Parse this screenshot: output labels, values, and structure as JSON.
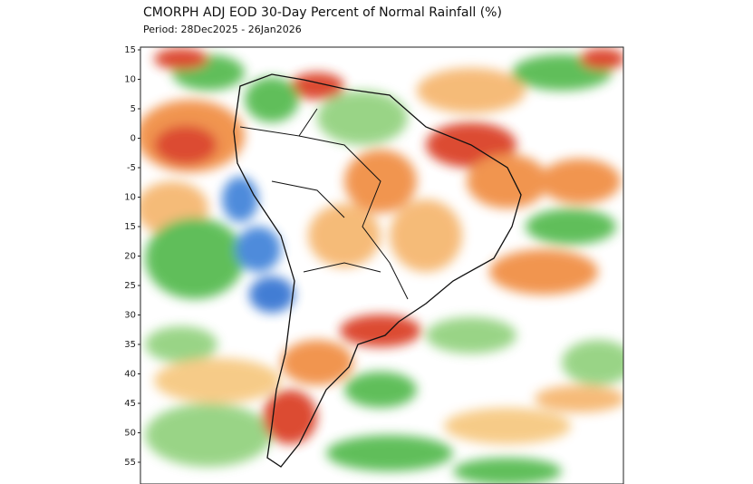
{
  "header": {
    "title": "CMORPH ADJ EOD 30-Day Percent of Normal Rainfall (%)",
    "period": "Period: 28Dec2025 - 26Jan2026"
  },
  "map": {
    "lat_labels": [
      "15",
      "10",
      "5",
      "0",
      "-5",
      "10",
      "15",
      "20",
      "25",
      "30",
      "35",
      "40",
      "45",
      "50",
      "55"
    ]
  }
}
